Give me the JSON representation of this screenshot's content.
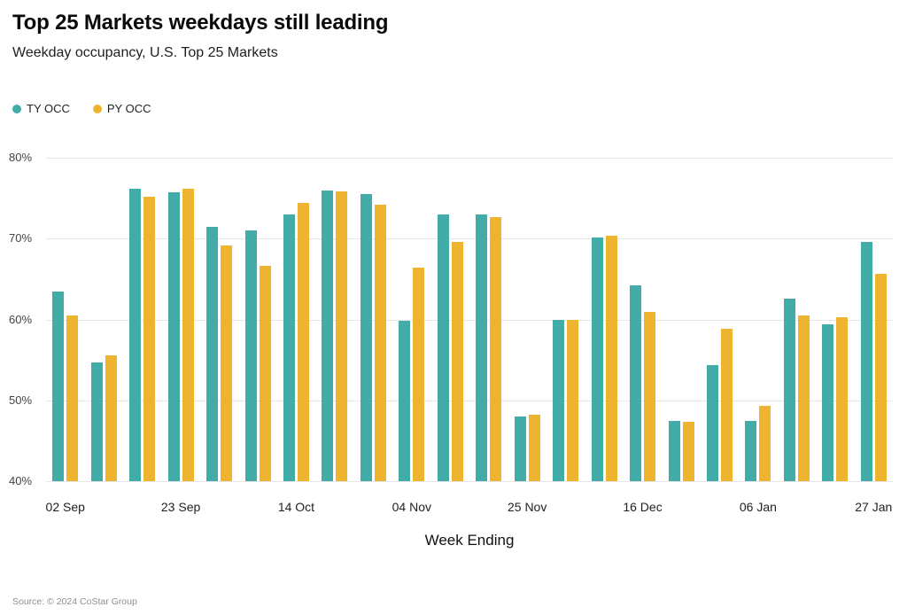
{
  "chart": {
    "title": "Top 25 Markets weekdays still leading",
    "subtitle": "Weekday occupancy, U.S. Top 25 Markets",
    "xlabel": "Week Ending",
    "source": "Source: © 2024 CoStar Group"
  },
  "chart_data": {
    "type": "bar",
    "title": "Top 25 Markets weekdays still leading",
    "subtitle": "Weekday occupancy, U.S. Top 25 Markets",
    "xlabel": "Week Ending",
    "ylabel": "",
    "ylim": [
      40,
      80
    ],
    "y_tick_step": 10,
    "y_tick_format": "percent",
    "grid": true,
    "legend_position": "top-left",
    "categories": [
      "02 Sep",
      "09 Sep",
      "16 Sep",
      "23 Sep",
      "30 Sep",
      "07 Oct",
      "14 Oct",
      "21 Oct",
      "28 Oct",
      "04 Nov",
      "11 Nov",
      "18 Nov",
      "25 Nov",
      "02 Dec",
      "09 Dec",
      "16 Dec",
      "23 Dec",
      "30 Dec",
      "06 Jan",
      "13 Jan",
      "20 Jan",
      "27 Jan"
    ],
    "x_tick_indices": [
      0,
      3,
      6,
      9,
      12,
      15,
      18,
      21
    ],
    "x_tick_labels": [
      "02 Sep",
      "23 Sep",
      "14 Oct",
      "04 Nov",
      "25 Nov",
      "16 Dec",
      "06 Jan",
      "27 Jan"
    ],
    "series": [
      {
        "name": "TY OCC",
        "color": "#42ADA8",
        "values": [
          63.5,
          54.7,
          76.2,
          75.7,
          71.5,
          71.0,
          73.0,
          75.9,
          75.5,
          59.8,
          73.0,
          73.0,
          48.0,
          60.0,
          70.1,
          64.2,
          47.4,
          54.4,
          47.5,
          62.6,
          59.4,
          69.6
        ]
      },
      {
        "name": "PY OCC",
        "color": "#EFB42F",
        "values": [
          60.5,
          55.6,
          75.2,
          76.2,
          69.2,
          66.6,
          74.4,
          75.8,
          74.2,
          66.4,
          69.6,
          72.7,
          48.2,
          60.0,
          70.4,
          60.9,
          47.3,
          58.8,
          49.3,
          60.5,
          60.3,
          65.6
        ]
      }
    ],
    "source": "Source: © 2024 CoStar Group"
  }
}
